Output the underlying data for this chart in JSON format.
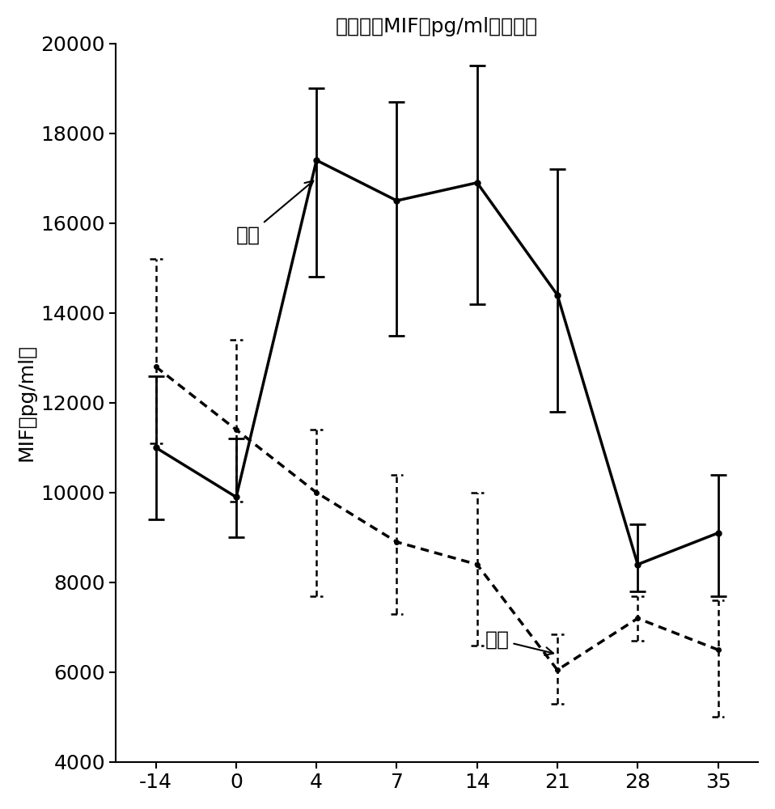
{
  "title": "平均値（MIF（pg/ml））对天",
  "ylabel": "MIF（pg/ml）",
  "x_days": [
    -14,
    0,
    4,
    7,
    14,
    21,
    28,
    35
  ],
  "test_mean": [
    11000,
    9900,
    17400,
    16500,
    16900,
    14400,
    8400,
    9100
  ],
  "test_err_low": [
    1600,
    900,
    2600,
    3000,
    2700,
    2600,
    600,
    1400
  ],
  "test_err_high": [
    1600,
    1300,
    1600,
    2200,
    2600,
    2800,
    900,
    1300
  ],
  "ctrl_mean": [
    12800,
    11400,
    10000,
    8900,
    8400,
    6050,
    7200,
    6500
  ],
  "ctrl_err_low": [
    1700,
    1600,
    2300,
    1600,
    1800,
    750,
    500,
    1500
  ],
  "ctrl_err_high": [
    2400,
    2000,
    1400,
    1500,
    1600,
    800,
    500,
    1100
  ],
  "ylim": [
    4000,
    20000
  ],
  "test_label": "测试",
  "ctrl_label": "对照",
  "background_color": "#ffffff",
  "line_color": "#000000",
  "tick_fontsize": 18,
  "label_fontsize": 18,
  "title_fontsize": 18
}
